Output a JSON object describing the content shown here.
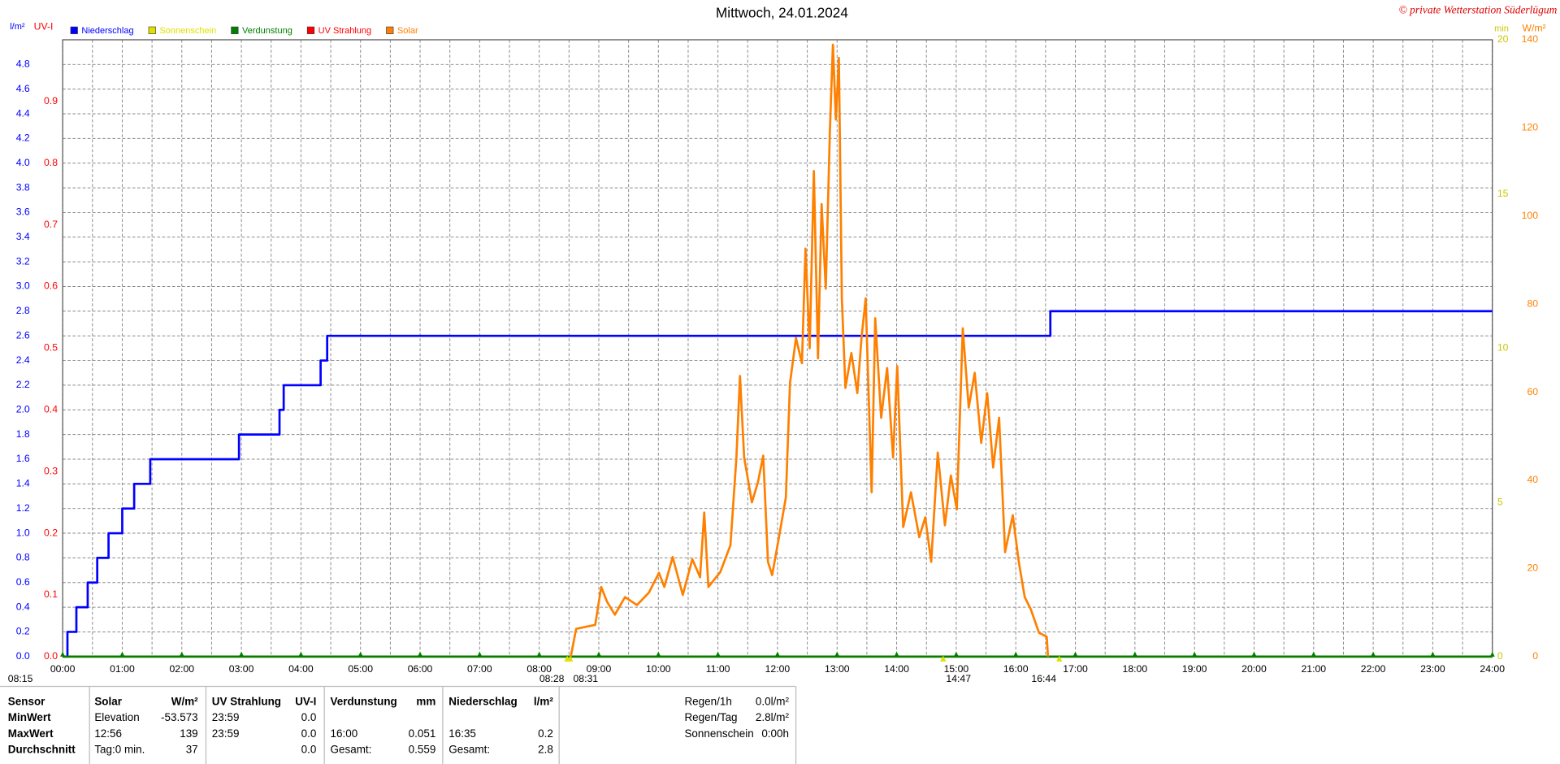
{
  "chart_data": {
    "type": "line",
    "title": "Mittwoch, 24.01.2024",
    "credit": "© private Wetterstation Süderlügum",
    "y_label": "l/m²",
    "uv_label": "UV-I",
    "y2_label": "min",
    "y3_label": "W/m²",
    "xlim": [
      0,
      24
    ],
    "xticks": [
      {
        "value": 0,
        "label": "00:00"
      },
      {
        "value": 1,
        "label": "01:00"
      },
      {
        "value": 2,
        "label": "02:00"
      },
      {
        "value": 3,
        "label": "03:00"
      },
      {
        "value": 4,
        "label": "04:00"
      },
      {
        "value": 5,
        "label": "05:00"
      },
      {
        "value": 6,
        "label": "06:00"
      },
      {
        "value": 7,
        "label": "07:00"
      },
      {
        "value": 8,
        "label": "08:00"
      },
      {
        "value": 9,
        "label": "09:00"
      },
      {
        "value": 10,
        "label": "10:00"
      },
      {
        "value": 11,
        "label": "11:00"
      },
      {
        "value": 12,
        "label": "12:00"
      },
      {
        "value": 13,
        "label": "13:00"
      },
      {
        "value": 14,
        "label": "14:00"
      },
      {
        "value": 15,
        "label": "15:00"
      },
      {
        "value": 16,
        "label": "16:00"
      },
      {
        "value": 17,
        "label": "17:00"
      },
      {
        "value": 18,
        "label": "18:00"
      },
      {
        "value": 19,
        "label": "19:00"
      },
      {
        "value": 20,
        "label": "20:00"
      },
      {
        "value": 21,
        "label": "21:00"
      },
      {
        "value": 22,
        "label": "22:00"
      },
      {
        "value": 23,
        "label": "23:00"
      },
      {
        "value": 24,
        "label": "24:00"
      }
    ],
    "ylim": [
      0,
      5
    ],
    "yticks": [
      {
        "value": 0,
        "label": "0.0"
      },
      0.2,
      0.4,
      0.6,
      0.8,
      {
        "value": 1,
        "label": "1.0"
      },
      1.2,
      1.4,
      1.6,
      1.8,
      {
        "value": 2,
        "label": "2.0"
      },
      2.2,
      2.4,
      2.6,
      2.8,
      {
        "value": 3,
        "label": "3.0"
      },
      3.2,
      3.4,
      3.6,
      3.8,
      {
        "value": 4,
        "label": "4.0"
      },
      4.2,
      4.4,
      4.6,
      4.8
    ],
    "uvlim": [
      0,
      1
    ],
    "uvticks": [
      {
        "value": 0,
        "label": "0.0"
      },
      0.1,
      0.2,
      0.3,
      0.4,
      0.5,
      0.6,
      0.7,
      0.8,
      0.9
    ],
    "y2lim": [
      0,
      20
    ],
    "y2ticks": [
      0,
      5,
      10,
      15,
      20
    ],
    "y3lim": [
      0,
      140
    ],
    "y3ticks": [
      0,
      20,
      40,
      60,
      80,
      100,
      120,
      140
    ],
    "grid": true,
    "series": [
      {
        "name": "Niederschlag",
        "color": "#0000ff",
        "axis": "y",
        "x": [
          0,
          0.08,
          0.08,
          0.23,
          0.23,
          0.42,
          0.42,
          0.58,
          0.58,
          0.77,
          0.77,
          1.0,
          1.0,
          1.2,
          1.2,
          1.47,
          1.47,
          2.96,
          2.96,
          3.64,
          3.64,
          3.71,
          3.71,
          4.33,
          4.33,
          4.44,
          4.44,
          16.58,
          16.58,
          24
        ],
        "values": [
          0,
          0,
          0.2,
          0.2,
          0.4,
          0.4,
          0.6,
          0.6,
          0.8,
          0.8,
          1.0,
          1.0,
          1.2,
          1.2,
          1.4,
          1.4,
          1.6,
          1.6,
          1.8,
          1.8,
          2.0,
          2.0,
          2.2,
          2.2,
          2.4,
          2.4,
          2.6,
          2.6,
          2.8,
          2.8
        ]
      },
      {
        "name": "Sonnenschein",
        "color": "#e0e000",
        "axis": "y2",
        "x": [
          0,
          24
        ],
        "values": [
          0,
          0
        ]
      },
      {
        "name": "Verdunstung",
        "color": "#008000",
        "axis": "y",
        "x": [
          0,
          24
        ],
        "values": [
          0,
          0
        ]
      },
      {
        "name": "UV Strahlung",
        "color": "#ff0000",
        "axis": "uv",
        "x": [
          0,
          24
        ],
        "values": [
          0,
          0
        ]
      },
      {
        "name": "Solar",
        "color": "#ff8000",
        "axis": "y3",
        "x": [
          8.53,
          8.62,
          8.94,
          9.04,
          9.14,
          9.27,
          9.44,
          9.64,
          9.84,
          10.01,
          10.1,
          10.24,
          10.41,
          10.57,
          10.7,
          10.77,
          10.84,
          11.04,
          11.21,
          11.31,
          11.37,
          11.44,
          11.57,
          11.67,
          11.76,
          11.84,
          11.91,
          12.01,
          12.14,
          12.21,
          12.31,
          12.41,
          12.47,
          12.54,
          12.61,
          12.68,
          12.74,
          12.81,
          12.88,
          12.93,
          12.98,
          13.03,
          13.08,
          13.14,
          13.24,
          13.34,
          13.41,
          13.48,
          13.58,
          13.64,
          13.74,
          13.84,
          13.94,
          14.01,
          14.11,
          14.24,
          14.38,
          14.48,
          14.58,
          14.69,
          14.81,
          14.91,
          15.01,
          15.11,
          15.21,
          15.31,
          15.42,
          15.52,
          15.62,
          15.72,
          15.82,
          15.95,
          16.05,
          16.15,
          16.25,
          16.39,
          16.52,
          16.54
        ],
        "values": [
          0,
          6.3,
          7.2,
          15.8,
          12.4,
          9.5,
          13.5,
          11.7,
          14.5,
          19,
          15.8,
          22.6,
          14,
          22.1,
          18,
          32.7,
          15.8,
          19.2,
          25.3,
          45.2,
          63.7,
          45.2,
          35,
          39.5,
          45.6,
          21.5,
          18.5,
          26,
          36.1,
          62.1,
          72.3,
          66.6,
          92.6,
          70,
          110.2,
          67.7,
          102.7,
          83.5,
          119.7,
          138.9,
          121.9,
          135.9,
          81.3,
          61,
          68.9,
          59.8,
          72.3,
          81.3,
          37.3,
          76.8,
          54.2,
          65.5,
          45.2,
          65.9,
          29.4,
          37.3,
          27.1,
          31.6,
          21.5,
          46.3,
          29.8,
          41.1,
          33.4,
          74.5,
          56.5,
          64.4,
          48.5,
          59.8,
          42.9,
          54.2,
          23.7,
          32.1,
          21.5,
          13.5,
          10.8,
          5.4,
          4.5,
          0
        ]
      }
    ],
    "left_note": "08:15",
    "annotations": [
      {
        "x": 8.47,
        "label": "08:28"
      },
      {
        "x": 8.52,
        "label": "08:31"
      },
      {
        "x": 14.78,
        "label": "14:47"
      },
      {
        "x": 16.73,
        "label": "16:44"
      }
    ]
  },
  "table": {
    "rows": [
      [
        "Sensor",
        "Solar",
        "W/m²",
        "UV Strahlung",
        "UV-I",
        "Verdunstung",
        "mm",
        "Niederschlag",
        "l/m²"
      ],
      [
        "MinWert",
        "Elevation",
        "-53.573",
        "23:59",
        "0.0",
        null,
        null,
        null,
        null
      ],
      [
        "MaxWert",
        "12:56",
        "139",
        "23:59",
        "0.0",
        "16:00",
        "0.051",
        "16:35",
        "0.2"
      ],
      [
        "Durchschnitt",
        "Tag:0 min.",
        "37",
        null,
        "0.0",
        "Gesamt:",
        "0.559",
        "Gesamt:",
        "2.8"
      ]
    ]
  },
  "summary": {
    "rows": [
      [
        "Regen/1h",
        "0.0l/m²"
      ],
      [
        "Regen/Tag",
        "2.8l/m²"
      ],
      [
        "Sonnenschein",
        "0:00h"
      ]
    ]
  }
}
